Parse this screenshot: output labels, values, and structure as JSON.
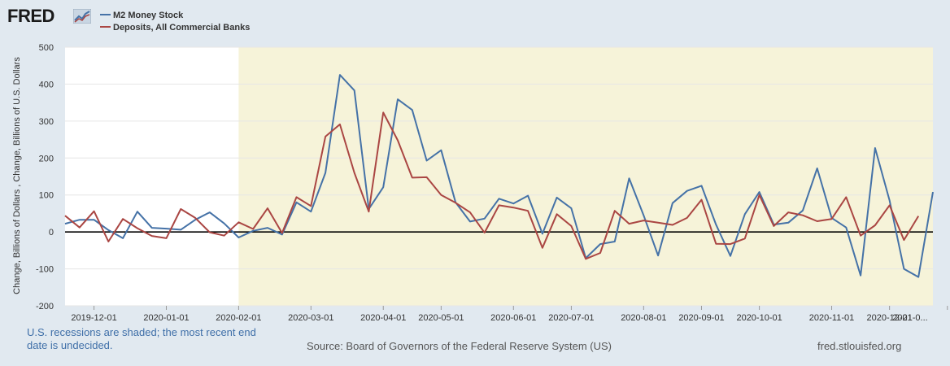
{
  "header": {
    "logo_text": "FRED"
  },
  "chart_data": {
    "type": "line",
    "series": [
      {
        "name": "M2 Money Stock",
        "color": "#4572a7",
        "values": [
          22,
          33,
          33,
          5,
          -17,
          55,
          11,
          9,
          6,
          33,
          53,
          23,
          -15,
          3,
          11,
          -7,
          80,
          55,
          160,
          425,
          383,
          62,
          121,
          359,
          330,
          193,
          221,
          80,
          28,
          36,
          90,
          77,
          98,
          -5,
          93,
          64,
          -71,
          -33,
          -26,
          145,
          45,
          -64,
          78,
          111,
          125,
          20,
          -65,
          48,
          108,
          20,
          25,
          58,
          172,
          38,
          12,
          -118,
          227,
          85,
          -100,
          -122,
          108
        ]
      },
      {
        "name": "Deposits, All Commercial Banks",
        "color": "#aa4643",
        "values": [
          44,
          12,
          56,
          -26,
          35,
          10,
          -11,
          -17,
          62,
          38,
          -1,
          -10,
          26,
          8,
          64,
          -3,
          94,
          70,
          258,
          291,
          160,
          55,
          323,
          248,
          147,
          148,
          100,
          79,
          53,
          -2,
          72,
          66,
          57,
          -43,
          48,
          16,
          -73,
          -57,
          57,
          22,
          31,
          25,
          19,
          38,
          87,
          -32,
          -33,
          -18,
          100,
          16,
          53,
          45,
          29,
          35,
          94,
          -10,
          18,
          72,
          -22,
          43
        ]
      }
    ],
    "x_labels": [
      "2019-12-01",
      "2020-01-01",
      "2020-02-01",
      "2020-03-01",
      "2020-04-01",
      "2020-05-01",
      "2020-06-01",
      "2020-07-01",
      "2020-08-01",
      "2020-09-01",
      "2020-10-01",
      "2020-11-01",
      "2020-12-01",
      "2021-0..."
    ],
    "y_ticks": [
      500,
      400,
      300,
      200,
      100,
      0,
      -100,
      -200
    ],
    "ylim": [
      -200,
      500
    ],
    "ylabel": "Change, Billions of Dollars , Change, Billions of U.S. Dollars",
    "xlabel": "",
    "recession_shading": {
      "start_label": "2020-02-01",
      "color": "#f6f3d9"
    },
    "zero_line": true,
    "grid": "horizontal"
  },
  "footer": {
    "note": "U.S. recessions are shaded; the most recent end date is undecided.",
    "source": "Source: Board of Governors of the Federal Reserve System (US)",
    "url": "fred.stlouisfed.org"
  }
}
